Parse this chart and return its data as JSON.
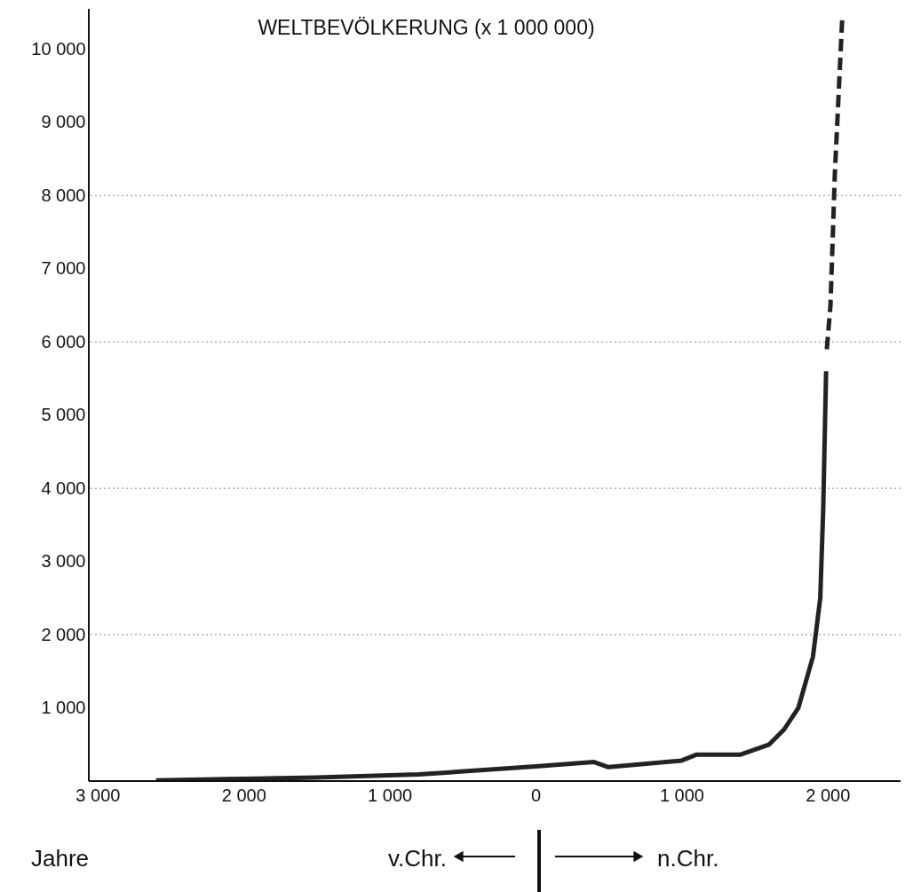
{
  "chart_data": {
    "type": "line",
    "title": "WELTBEVÖLKERUNG    (x 1 000 000)",
    "xlim": [
      -3060,
      2500
    ],
    "ylim": [
      0,
      10550
    ],
    "xticks": [
      {
        "value": -3000,
        "label": "3 000"
      },
      {
        "value": -2000,
        "label": "2 000"
      },
      {
        "value": -1000,
        "label": "1 000"
      },
      0,
      {
        "value": 1000,
        "label": "1 000"
      },
      {
        "value": 2000,
        "label": "2 000"
      }
    ],
    "yticks": [
      {
        "value": 1000,
        "label": "1 000"
      },
      {
        "value": 2000,
        "label": "2 000"
      },
      {
        "value": 3000,
        "label": "3 000"
      },
      {
        "value": 4000,
        "label": "4 000"
      },
      {
        "value": 5000,
        "label": "5 000"
      },
      {
        "value": 6000,
        "label": "6 000"
      },
      {
        "value": 7000,
        "label": "7 000"
      },
      {
        "value": 8000,
        "label": "8 000"
      },
      {
        "value": 9000,
        "label": "9 000"
      },
      {
        "value": 10000,
        "label": "10 000"
      }
    ],
    "series": [
      {
        "color": "#222222",
        "line_style": "solid",
        "x": [
          -2600,
          -2000,
          -1500,
          -1000,
          -800,
          0,
          400,
          500,
          1000,
          1100,
          1400,
          1600,
          1700,
          1800,
          1900,
          1950,
          1970,
          1990
        ],
        "values": [
          10,
          30,
          50,
          80,
          90,
          200,
          260,
          190,
          280,
          360,
          360,
          500,
          700,
          1000,
          1700,
          2500,
          3700,
          5600
        ]
      },
      {
        "color": "#222222",
        "line_style": "dashed",
        "x": [
          1995,
          2020,
          2050,
          2100
        ],
        "values": [
          5900,
          6500,
          8300,
          10400
        ]
      }
    ],
    "ref_lines": [
      {
        "axis": "y",
        "value": 2000,
        "line_style": "dotted",
        "color": "#888888"
      },
      {
        "axis": "y",
        "value": 4000,
        "line_style": "dotted",
        "color": "#888888"
      },
      {
        "axis": "y",
        "value": 6000,
        "line_style": "dotted",
        "color": "#888888"
      },
      {
        "axis": "y",
        "value": 8000,
        "line_style": "dotted",
        "color": "#888888"
      }
    ],
    "annotations": [
      "Jahre",
      "v.Chr.",
      "n.Chr."
    ],
    "marker": "none",
    "grid": false
  }
}
